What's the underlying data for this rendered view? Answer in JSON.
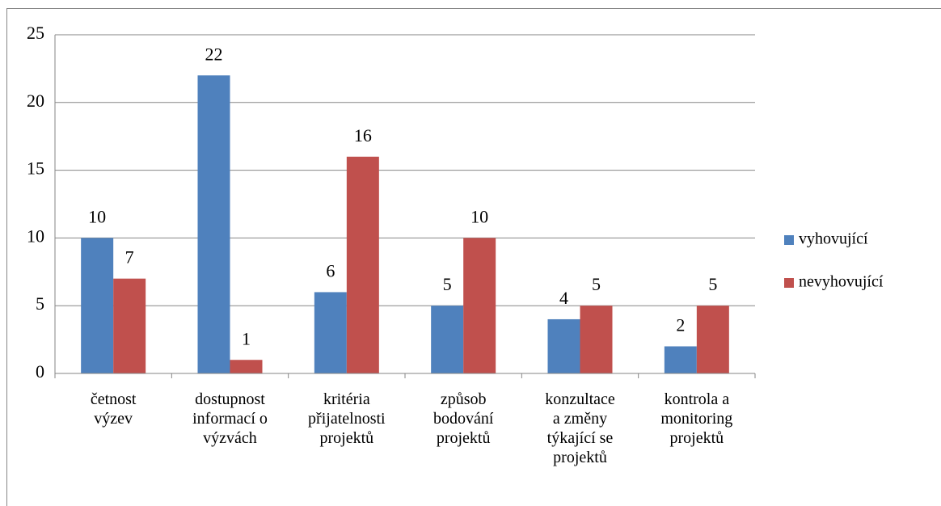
{
  "chart_data": {
    "type": "bar",
    "categories": [
      "četnost výzev",
      "dostupnost informací o výzvách",
      "kritéria přijatelnosti projektů",
      "způsob bodování projektů",
      "konzultace a změny týkající se projektů",
      "kontrola a monitoring projektů"
    ],
    "series": [
      {
        "name": "vyhovující",
        "color": "#4f81bd",
        "values": [
          10,
          22,
          6,
          5,
          4,
          2
        ]
      },
      {
        "name": "nevyhovující",
        "color": "#c0504d",
        "values": [
          7,
          1,
          16,
          10,
          5,
          5
        ]
      }
    ],
    "ylim": [
      0,
      25
    ],
    "yticks": [
      0,
      5,
      10,
      15,
      20,
      25
    ],
    "grid": true,
    "legend": "right"
  }
}
